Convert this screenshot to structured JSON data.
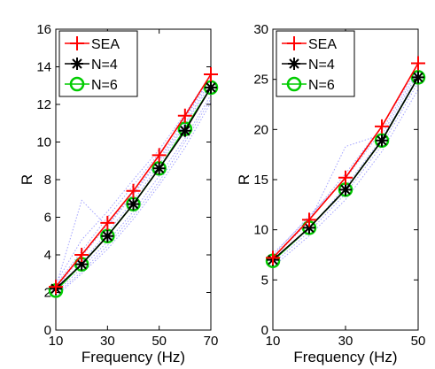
{
  "chart_data": [
    {
      "type": "line",
      "xlabel": "Frequency (Hz)",
      "ylabel": "R",
      "xlim": [
        10,
        70
      ],
      "ylim": [
        0,
        16
      ],
      "xticks": [
        10,
        30,
        50,
        70
      ],
      "yticks": [
        0,
        2,
        4,
        6,
        8,
        10,
        12,
        14,
        16
      ],
      "x": [
        10,
        20,
        30,
        40,
        50,
        60,
        70
      ],
      "grid": false,
      "legend_position": "top-left",
      "series": [
        {
          "name": "SEA",
          "values": [
            2.3,
            4.0,
            5.7,
            7.4,
            9.3,
            11.4,
            13.6
          ],
          "color": "#ff0000",
          "marker": "plus"
        },
        {
          "name": "N=4",
          "values": [
            2.2,
            3.5,
            5.0,
            6.7,
            8.6,
            10.6,
            12.9
          ],
          "color": "#000000",
          "marker": "asterisk"
        },
        {
          "name": "N=6",
          "values": [
            2.1,
            3.5,
            5.0,
            6.7,
            8.6,
            10.7,
            12.9
          ],
          "color": "#00cc00",
          "marker": "circle"
        }
      ],
      "background_lines": [
        [
          2.5,
          4.8,
          6.3,
          8.0,
          9.6,
          11.5,
          13.6
        ],
        [
          1.9,
          3.1,
          4.5,
          6.1,
          7.9,
          10.0,
          12.3
        ],
        [
          2.3,
          6.9,
          5.5,
          7.2,
          9.0,
          11.0,
          13.3
        ],
        [
          2.0,
          3.3,
          4.7,
          6.3,
          8.2,
          10.2,
          12.5
        ],
        [
          2.4,
          4.2,
          6.0,
          7.7,
          9.4,
          11.3,
          13.4
        ],
        [
          2.1,
          3.6,
          5.2,
          6.9,
          8.8,
          10.9,
          13.1
        ],
        [
          1.8,
          3.0,
          4.3,
          5.9,
          7.7,
          9.7,
          12.1
        ],
        [
          2.2,
          3.9,
          5.6,
          7.3,
          9.1,
          11.2,
          13.5
        ]
      ]
    },
    {
      "type": "line",
      "xlabel": "Frequency (Hz)",
      "ylabel": "R",
      "xlim": [
        10,
        50
      ],
      "ylim": [
        0,
        30
      ],
      "xticks": [
        10,
        30,
        50
      ],
      "yticks": [
        0,
        5,
        10,
        15,
        20,
        25,
        30
      ],
      "x": [
        10,
        20,
        30,
        40,
        50
      ],
      "grid": false,
      "legend_position": "top-left",
      "series": [
        {
          "name": "SEA",
          "values": [
            7.2,
            11.0,
            15.2,
            20.3,
            26.6
          ],
          "color": "#ff0000",
          "marker": "plus"
        },
        {
          "name": "N=4",
          "values": [
            7.0,
            10.2,
            14.0,
            18.9,
            25.2
          ],
          "color": "#000000",
          "marker": "asterisk"
        },
        {
          "name": "N=6",
          "values": [
            6.9,
            10.2,
            14.0,
            18.9,
            25.2
          ],
          "color": "#00cc00",
          "marker": "circle"
        }
      ],
      "background_lines": [
        [
          7.6,
          11.2,
          15.6,
          20.3,
          26.2
        ],
        [
          6.3,
          9.4,
          13.0,
          17.8,
          24.0
        ],
        [
          7.2,
          10.8,
          18.3,
          19.5,
          25.6
        ],
        [
          6.6,
          9.8,
          13.6,
          18.4,
          24.7
        ],
        [
          7.4,
          11.4,
          15.1,
          19.9,
          25.9
        ],
        [
          6.9,
          10.1,
          14.3,
          19.1,
          25.3
        ]
      ]
    }
  ]
}
